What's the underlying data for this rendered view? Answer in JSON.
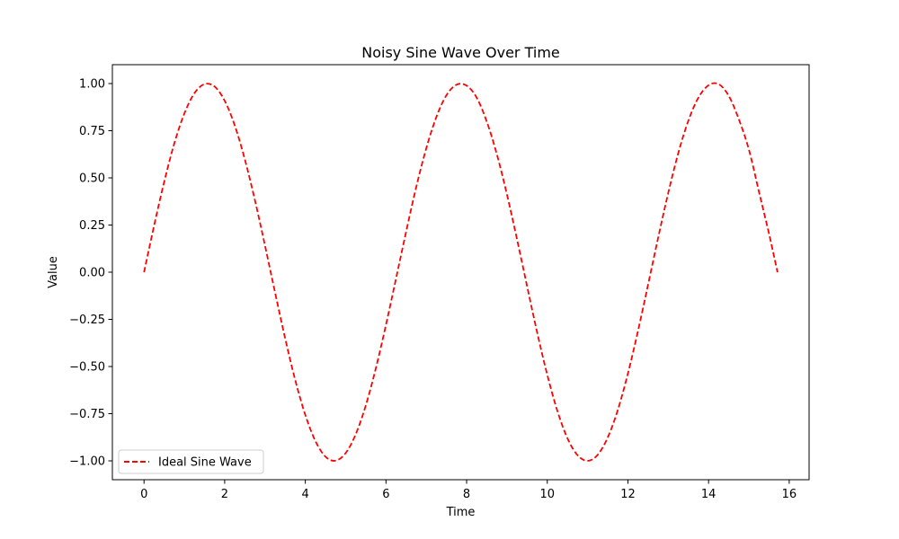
{
  "chart_data": {
    "type": "line",
    "title": "Noisy Sine Wave Over Time",
    "xlabel": "Time",
    "ylabel": "Value",
    "xlim": [
      -0.785,
      16.493
    ],
    "ylim": [
      -1.1,
      1.1
    ],
    "xticks": [
      0,
      2,
      4,
      6,
      8,
      10,
      12,
      14,
      16
    ],
    "xtick_labels": [
      "0",
      "2",
      "4",
      "6",
      "8",
      "10",
      "12",
      "14",
      "16"
    ],
    "yticks": [
      1.0,
      0.75,
      0.5,
      0.25,
      0.0,
      -0.25,
      -0.5,
      -0.75,
      -1.0
    ],
    "ytick_labels": [
      "1.00",
      "0.75",
      "0.50",
      "0.25",
      "0.00",
      "−0.25",
      "−0.50",
      "−0.75",
      "−1.00"
    ],
    "grid": false,
    "legend_position": "lower-left",
    "series": [
      {
        "name": "Ideal Sine Wave",
        "color": "#ff0000",
        "line_style": "dashed",
        "x": [
          0,
          0.25,
          0.5,
          0.75,
          1.0,
          1.25,
          1.5,
          1.75,
          2.0,
          2.25,
          2.5,
          2.75,
          3.0,
          3.25,
          3.5,
          3.75,
          4.0,
          4.25,
          4.5,
          4.75,
          5.0,
          5.25,
          5.5,
          5.75,
          6.0,
          6.25,
          6.5,
          6.75,
          7.0,
          7.25,
          7.5,
          7.75,
          8.0,
          8.25,
          8.5,
          8.75,
          9.0,
          9.25,
          9.5,
          9.75,
          10.0,
          10.25,
          10.5,
          10.75,
          11.0,
          11.25,
          11.5,
          11.75,
          12.0,
          12.25,
          12.5,
          12.75,
          13.0,
          13.25,
          13.5,
          13.75,
          14.0,
          14.25,
          14.5,
          14.75,
          15.0,
          15.25,
          15.5,
          15.71
        ],
        "y": [
          0.0,
          0.247,
          0.479,
          0.682,
          0.841,
          0.949,
          0.997,
          0.984,
          0.909,
          0.778,
          0.598,
          0.382,
          0.141,
          -0.108,
          -0.351,
          -0.572,
          -0.757,
          -0.895,
          -0.978,
          -0.999,
          -0.959,
          -0.859,
          -0.706,
          -0.508,
          -0.279,
          -0.033,
          0.215,
          0.451,
          0.657,
          0.823,
          0.938,
          0.994,
          0.989,
          0.925,
          0.798,
          0.625,
          0.412,
          0.174,
          -0.075,
          -0.32,
          -0.544,
          -0.735,
          -0.88,
          -0.97,
          -1.0,
          -0.968,
          -0.876,
          -0.73,
          -0.537,
          -0.311,
          -0.066,
          0.183,
          0.42,
          0.632,
          0.804,
          0.926,
          0.991,
          0.997,
          0.935,
          0.811,
          0.65,
          0.426,
          0.203,
          0.0
        ]
      }
    ]
  }
}
